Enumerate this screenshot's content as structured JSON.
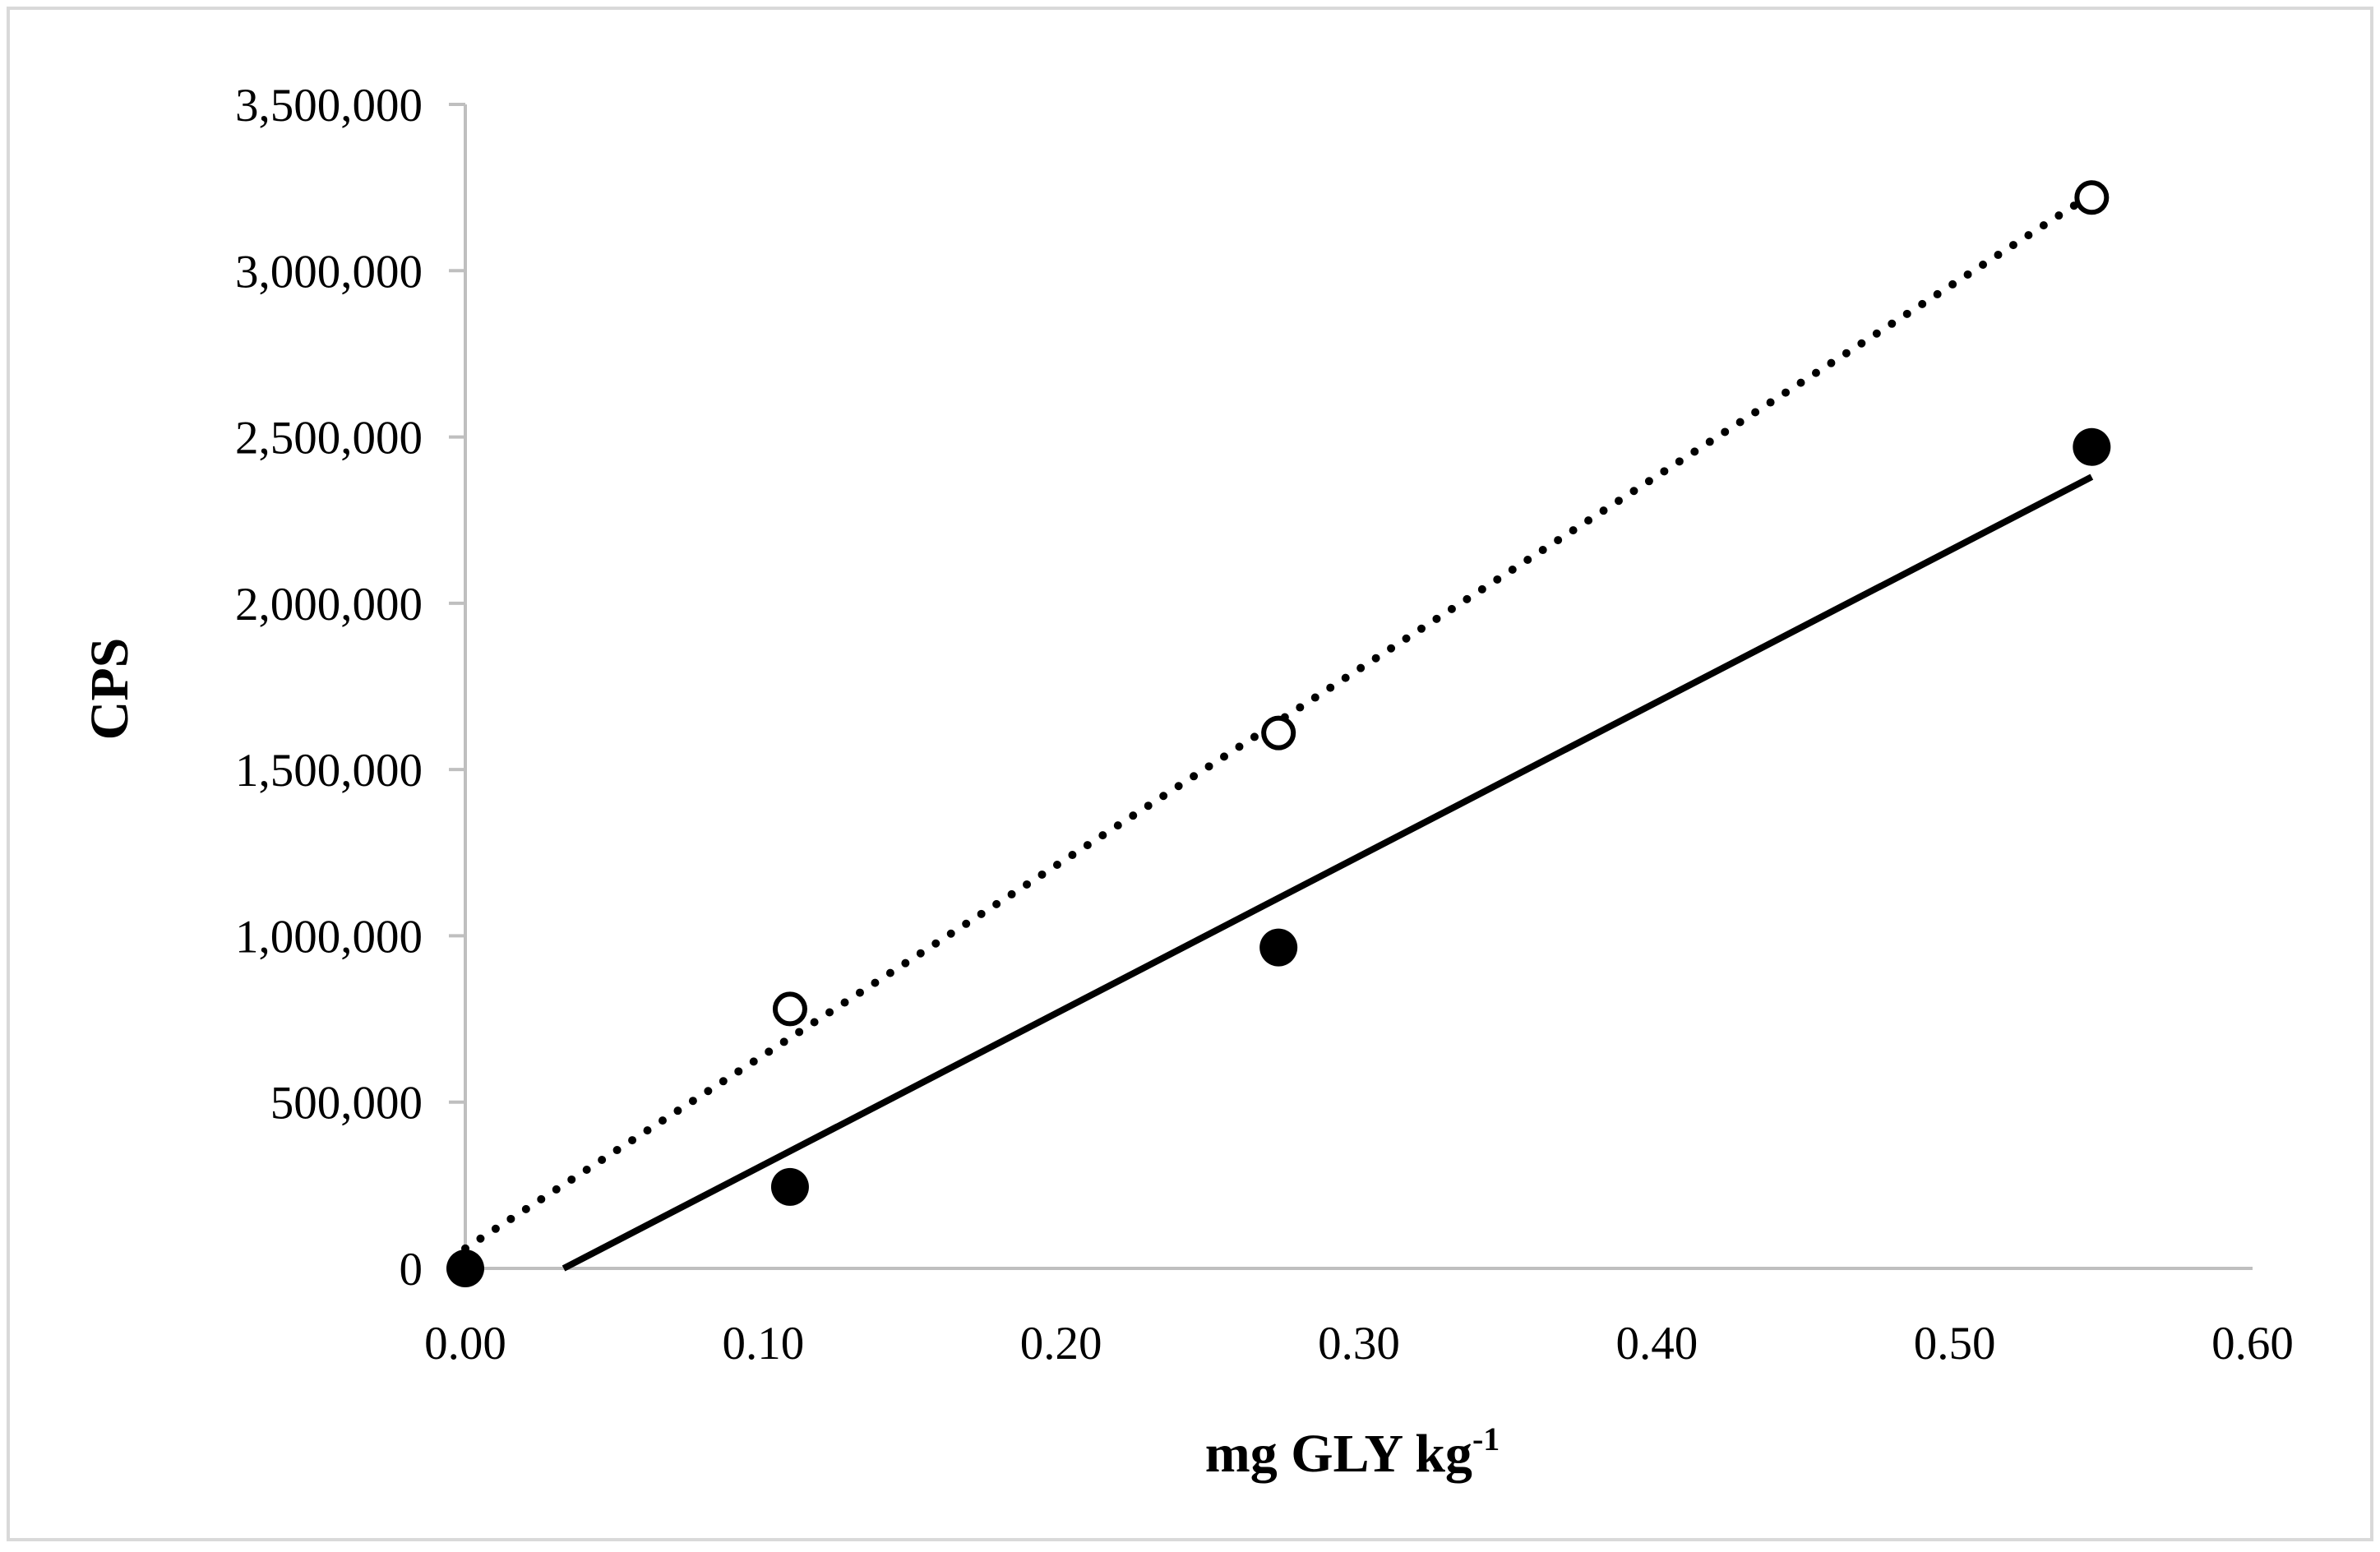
{
  "chart_data": {
    "type": "scatter",
    "title": "",
    "xlabel": "mg GLY kg",
    "xlabel_superscript": "-1",
    "ylabel": "CPS",
    "xlim": [
      0,
      0.6
    ],
    "ylim": [
      0,
      3500000
    ],
    "x_ticks": [
      0,
      0.1,
      0.2,
      0.3,
      0.4,
      0.5,
      0.6
    ],
    "x_tick_labels": [
      "0.00",
      "0.10",
      "0.20",
      "0.30",
      "0.40",
      "0.50",
      "0.60"
    ],
    "y_ticks": [
      0,
      500000,
      1000000,
      1500000,
      2000000,
      2500000,
      3000000,
      3500000
    ],
    "y_tick_labels": [
      "0",
      "500,000",
      "1,000,000",
      "1,500,000",
      "2,000,000",
      "2,500,000",
      "3,000,000",
      "3,500,000"
    ],
    "grid": false,
    "legend": "none",
    "series": [
      {
        "name": "open circles",
        "marker": "open-circle",
        "x": [
          0.0,
          0.109,
          0.273,
          0.546
        ],
        "y": [
          0,
          780000,
          1610000,
          3220000
        ],
        "trendline": {
          "style": "dotted",
          "x_start": 0.0,
          "y_start": 60000,
          "x_end": 0.546,
          "y_end": 3230000
        }
      },
      {
        "name": "filled circles",
        "marker": "filled-circle",
        "x": [
          0.0,
          0.109,
          0.273,
          0.546
        ],
        "y": [
          0,
          245000,
          965000,
          2470000
        ],
        "trendline": {
          "style": "solid",
          "x_start": 0.033,
          "y_start": 0,
          "x_end": 0.546,
          "y_end": 2380000
        }
      }
    ],
    "colors": {
      "axis": "#bfbfbf",
      "marker": "#000000",
      "line": "#000000",
      "frame": "#d9d9d9"
    }
  }
}
